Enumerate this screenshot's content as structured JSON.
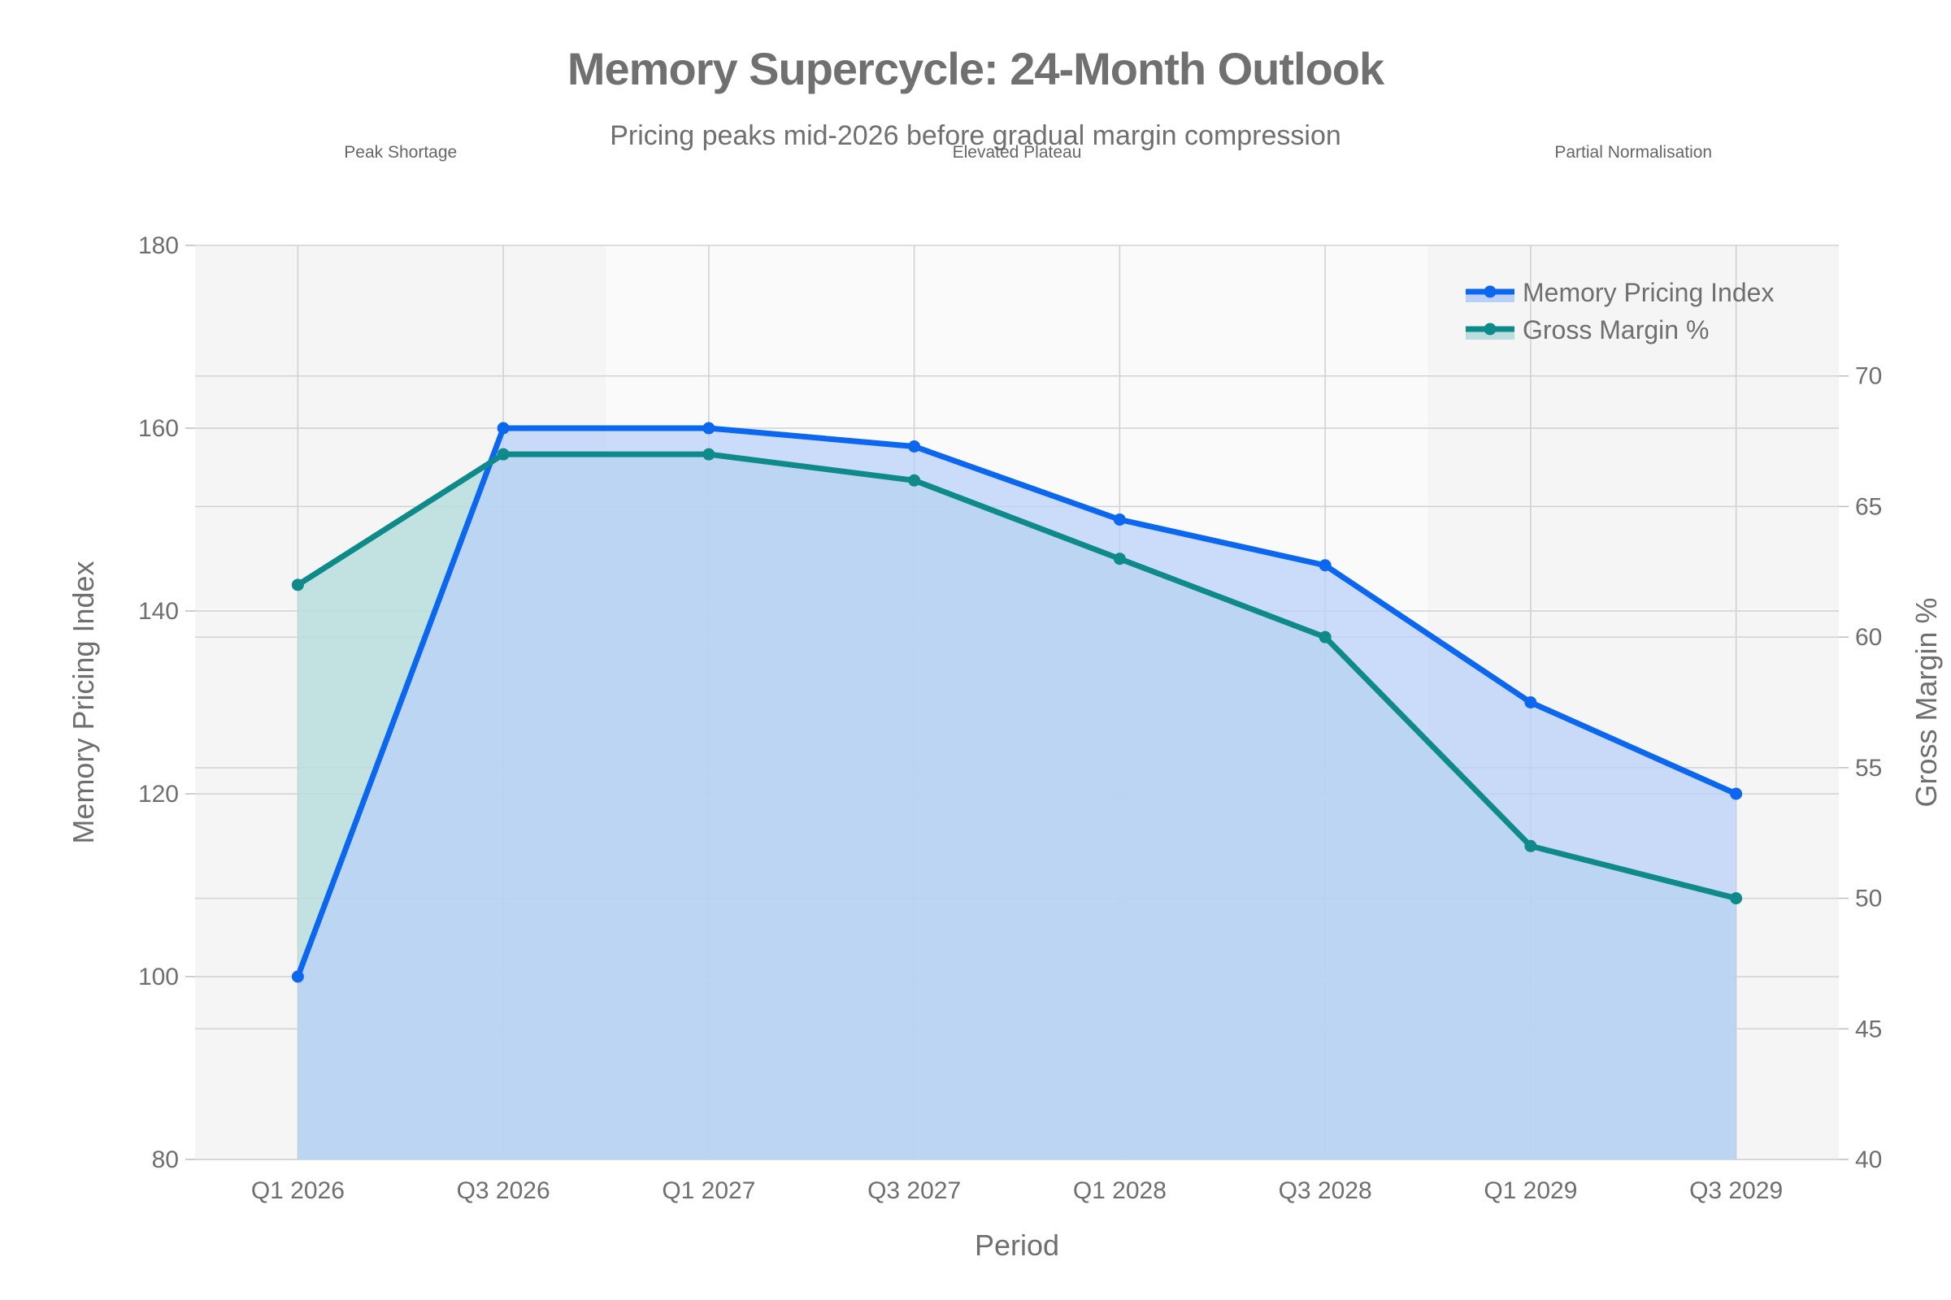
{
  "chart_data": {
    "type": "line",
    "title": "Memory Supercycle: 24-Month Outlook",
    "subtitle": "Pricing peaks mid-2026 before gradual margin compression",
    "xlabel": "Period",
    "ylabel": "Memory Pricing Index",
    "y2label": "Gross Margin %",
    "categories": [
      "Q1 2026",
      "Q3 2026",
      "Q1 2027",
      "Q3 2027",
      "Q1 2028",
      "Q3 2028",
      "Q1 2029",
      "Q3 2029"
    ],
    "ylim": [
      80,
      180
    ],
    "y_ticks": [
      80,
      100,
      120,
      140,
      160,
      180
    ],
    "y2lim": [
      40,
      75
    ],
    "y2_ticks": [
      40,
      45,
      50,
      55,
      60,
      65,
      70
    ],
    "grid": true,
    "legend_position": "top-right",
    "phases": [
      {
        "label": "Peak Shortage",
        "shade": "#f5f5f5",
        "from": -0.5,
        "to": 1.5
      },
      {
        "label": "Elevated Plateau",
        "shade": "#fafafa",
        "from": 1.5,
        "to": 5.5
      },
      {
        "label": "Partial Normalisation",
        "shade": "#f5f5f5",
        "from": 5.5,
        "to": 7.5
      }
    ],
    "series": [
      {
        "name": "Memory Pricing Index",
        "axis": "left",
        "color": "#0b66f0",
        "fill": "#b8d0fa",
        "values": [
          100,
          160,
          160,
          158,
          150,
          145,
          130,
          120
        ]
      },
      {
        "name": "Gross Margin %",
        "axis": "right",
        "color": "#0f8a8a",
        "fill": "#b9dedd",
        "values": [
          62,
          67,
          67,
          66,
          63,
          60,
          52,
          50
        ]
      }
    ]
  }
}
